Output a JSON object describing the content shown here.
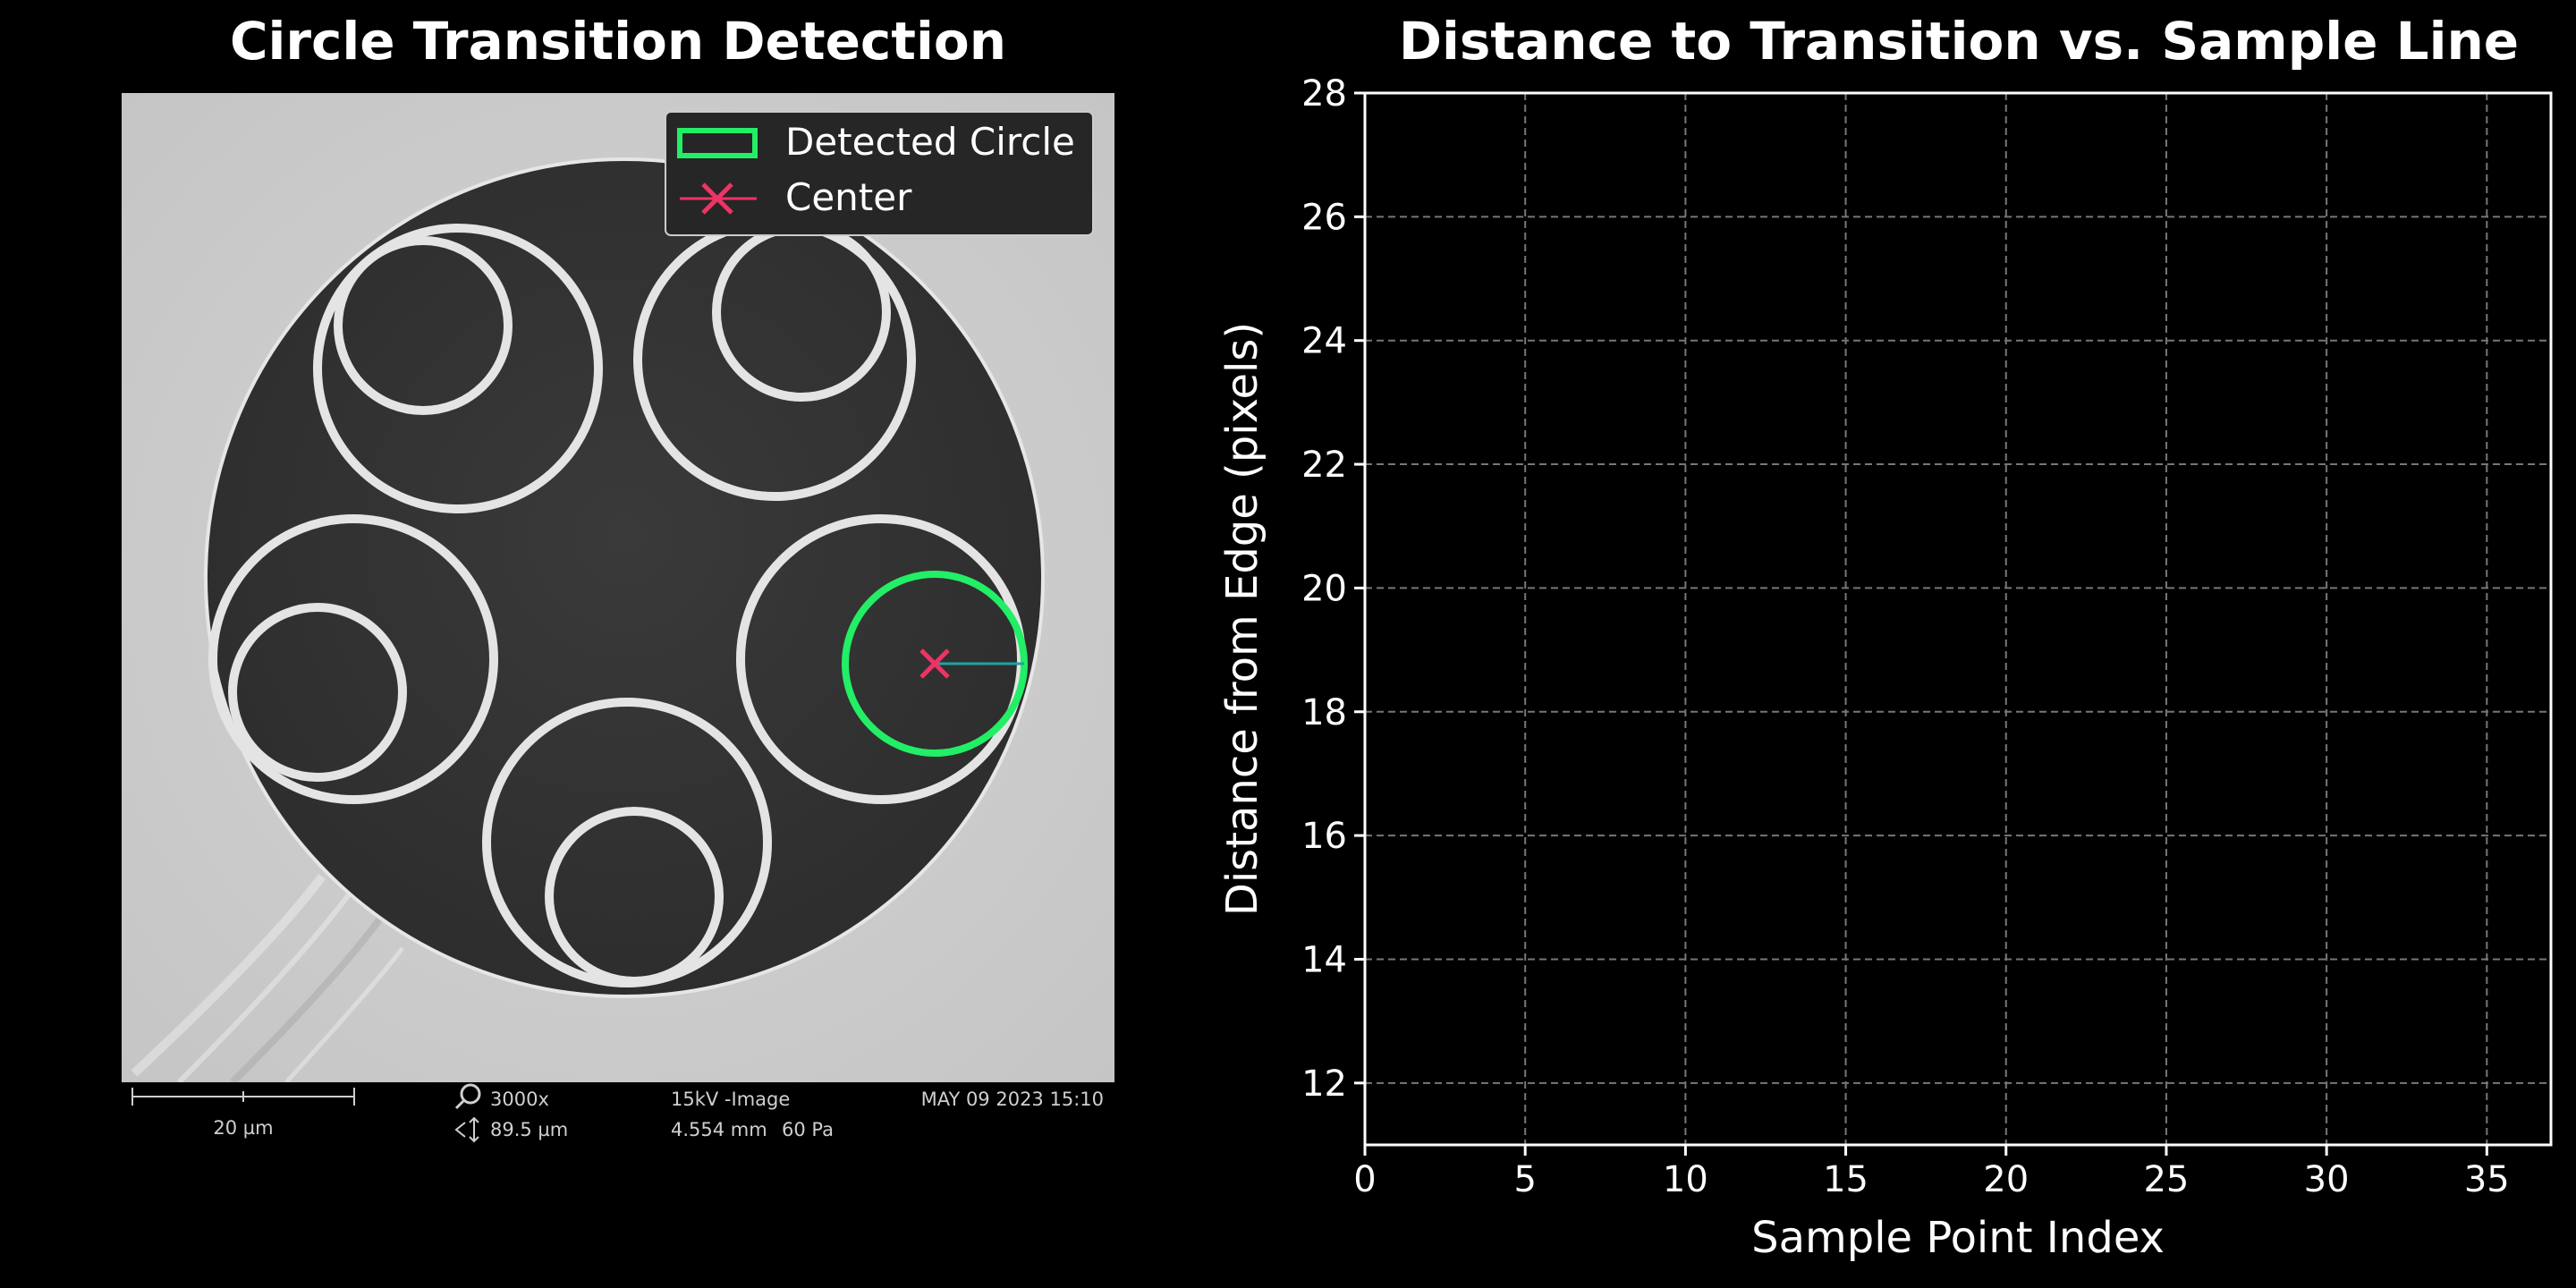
{
  "chart_data": [
    {
      "type": "image",
      "title": "Circle Transition Detection",
      "legend": {
        "placement": "top-right",
        "entries": [
          {
            "label": "Detected Circle",
            "color": "#22ee66",
            "marker": "rectangle"
          },
          {
            "label": "Center",
            "color": "#ee3366",
            "marker": "x"
          }
        ]
      },
      "image_meta": {
        "scalebar_label": "20 µm",
        "magnification": "3000x",
        "field_width": "89.5 µm",
        "mode": "15kV -Image",
        "working_distance": "4.554 mm",
        "pressure": "60 Pa",
        "timestamp": "MAY 09 2023 15:10"
      }
    },
    {
      "type": "line",
      "title": "Distance to Transition vs. Sample Line",
      "xlabel": "Sample Point Index",
      "ylabel": "Distance from Edge (pixels)",
      "xlim": [
        0,
        37
      ],
      "ylim": [
        11,
        28
      ],
      "xticks": [
        0,
        5,
        10,
        15,
        20,
        25,
        30,
        35
      ],
      "yticks": [
        12,
        14,
        16,
        18,
        20,
        22,
        24,
        26,
        28
      ],
      "grid": true,
      "series": []
    }
  ]
}
